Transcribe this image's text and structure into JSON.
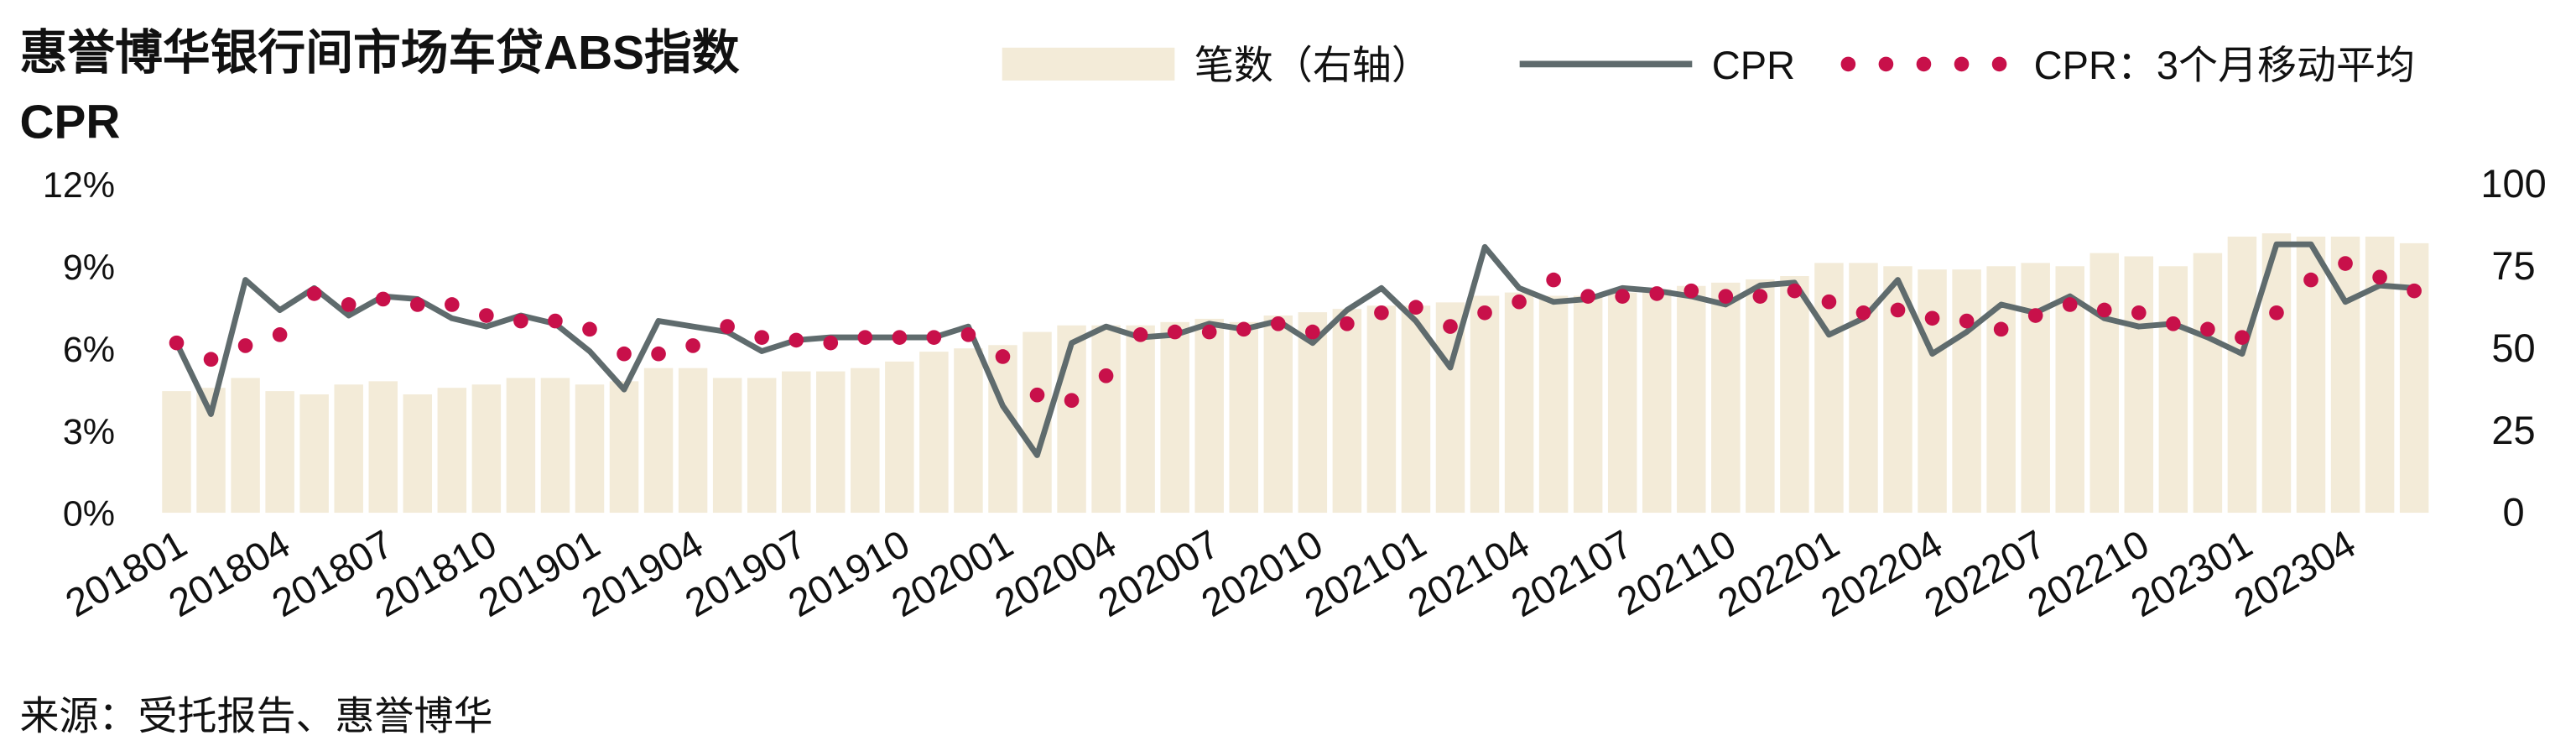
{
  "chart_data": {
    "type": "bar_line",
    "title": "惠誉博华银行间市场车贷ABS指数",
    "y_label": "CPR",
    "note": "来源：受托报告、惠誉博华",
    "categories": [
      "201801",
      null,
      null,
      "201804",
      null,
      null,
      "201807",
      null,
      null,
      "201810",
      null,
      null,
      "201901",
      null,
      null,
      "201904",
      null,
      null,
      "201907",
      null,
      null,
      "201910",
      null,
      null,
      "202001",
      null,
      null,
      "202004",
      null,
      null,
      "202007",
      null,
      null,
      "202010",
      null,
      null,
      "202101",
      null,
      null,
      "202104",
      null,
      null,
      "202107",
      null,
      null,
      "202110",
      null,
      null,
      "202201",
      null,
      null,
      "202204",
      null,
      null,
      "202207",
      null,
      null,
      "202210",
      null,
      null,
      "202301",
      null,
      null,
      "202304",
      null,
      null
    ],
    "series": [
      {
        "name": "笔数（右轴）",
        "kind": "bar",
        "axis": "y2",
        "color": "#f3ebd8",
        "values": [
          37,
          38,
          41,
          37,
          36,
          39,
          40,
          36,
          38,
          39,
          41,
          41,
          39,
          40,
          44,
          44,
          41,
          41,
          43,
          43,
          44,
          46,
          49,
          50,
          51,
          55,
          57,
          57,
          57,
          58,
          59,
          58,
          60,
          61,
          62,
          63,
          63,
          64,
          66,
          67,
          66,
          66,
          67,
          68,
          69,
          70,
          71,
          72,
          76,
          76,
          75,
          74,
          74,
          75,
          76,
          75,
          79,
          78,
          75,
          79,
          84,
          85,
          84,
          84,
          84,
          82
        ]
      },
      {
        "name": "CPR",
        "kind": "line",
        "color": "#5f6b6d",
        "values": [
          6.2,
          3.6,
          8.5,
          7.4,
          8.2,
          7.2,
          7.9,
          7.8,
          7.1,
          6.8,
          7.2,
          6.9,
          5.9,
          4.5,
          7.0,
          6.8,
          6.6,
          5.9,
          6.3,
          6.4,
          6.4,
          6.4,
          6.4,
          6.8,
          3.9,
          2.1,
          6.2,
          6.8,
          6.4,
          6.5,
          6.9,
          6.7,
          7.0,
          6.2,
          7.4,
          8.2,
          7.0,
          5.3,
          9.7,
          8.2,
          7.7,
          7.8,
          8.2,
          8.1,
          7.9,
          7.6,
          8.3,
          8.4,
          6.5,
          7.1,
          8.5,
          5.8,
          6.6,
          7.6,
          7.3,
          7.9,
          7.1,
          6.8,
          6.9,
          6.4,
          5.8,
          9.8,
          9.8,
          7.7,
          8.3,
          8.2
        ]
      },
      {
        "name": "CPR：3个月移动平均",
        "kind": "dots",
        "color": "#c8104a",
        "values": [
          6.2,
          5.6,
          6.1,
          6.5,
          8.0,
          7.6,
          7.8,
          7.6,
          7.6,
          7.2,
          7.0,
          7.0,
          6.7,
          5.8,
          5.8,
          6.1,
          6.8,
          6.4,
          6.3,
          6.2,
          6.4,
          6.4,
          6.4,
          6.5,
          5.7,
          4.3,
          4.1,
          5.0,
          6.5,
          6.6,
          6.6,
          6.7,
          6.9,
          6.6,
          6.9,
          7.3,
          7.5,
          6.8,
          7.3,
          7.7,
          8.5,
          7.9,
          7.9,
          8.0,
          8.1,
          7.9,
          7.9,
          8.1,
          7.7,
          7.3,
          7.4,
          7.1,
          7.0,
          6.7,
          7.2,
          7.6,
          7.4,
          7.3,
          6.9,
          6.7,
          6.4,
          7.3,
          8.5,
          9.1,
          8.6,
          8.1
        ]
      }
    ],
    "ylim": [
      0,
      12
    ],
    "yticks": [
      {
        "value": 0,
        "label": "0%"
      },
      {
        "value": 3,
        "label": "3%"
      },
      {
        "value": 6,
        "label": "6%"
      },
      {
        "value": 9,
        "label": "9%"
      },
      {
        "value": 12,
        "label": "12%"
      }
    ],
    "y2lim": [
      0,
      100
    ],
    "y2ticks": [
      0,
      25,
      50,
      75,
      100
    ]
  }
}
